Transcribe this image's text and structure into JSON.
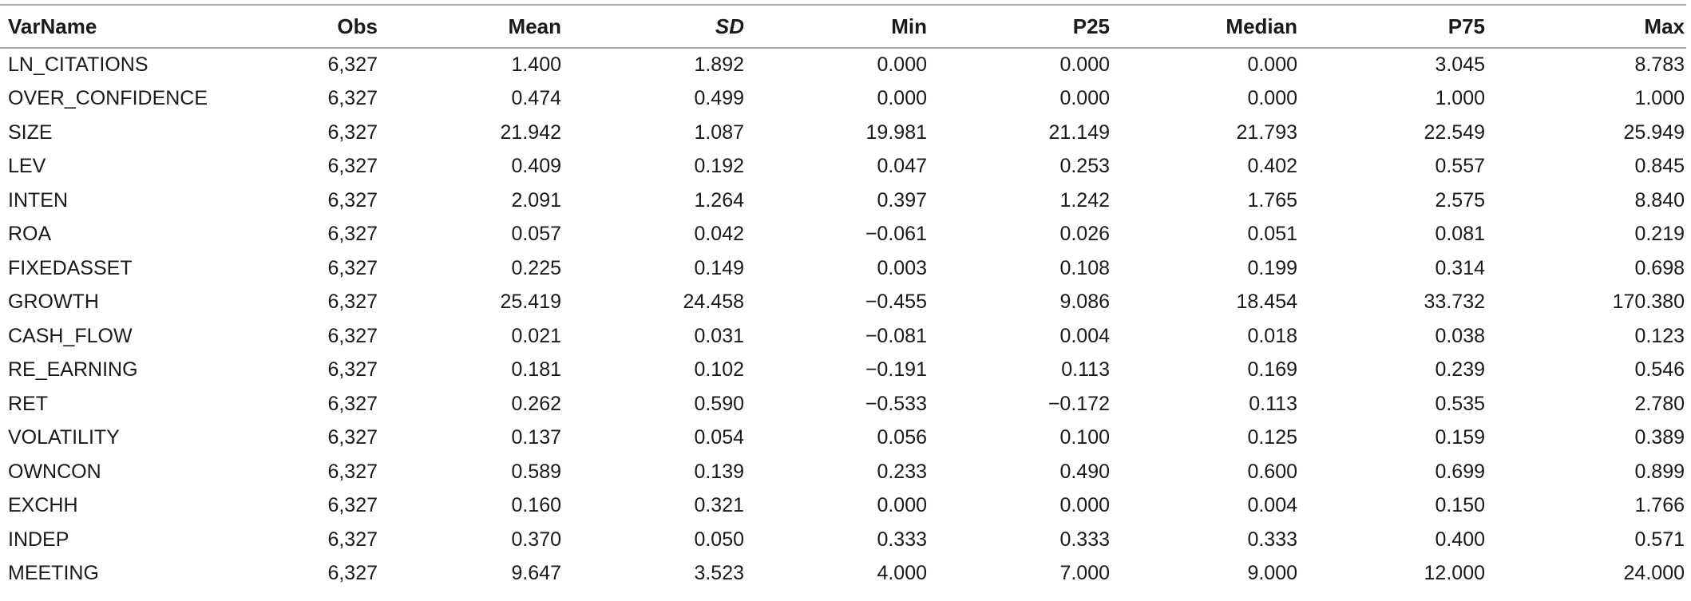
{
  "table": {
    "headers": [
      "VarName",
      "Obs",
      "Mean",
      "SD",
      "Min",
      "P25",
      "Median",
      "P75",
      "Max"
    ],
    "rows": [
      [
        "LN_CITATIONS",
        "6,327",
        "1.400",
        "1.892",
        "0.000",
        "0.000",
        "0.000",
        "3.045",
        "8.783"
      ],
      [
        "OVER_CONFIDENCE",
        "6,327",
        "0.474",
        "0.499",
        "0.000",
        "0.000",
        "0.000",
        "1.000",
        "1.000"
      ],
      [
        "SIZE",
        "6,327",
        "21.942",
        "1.087",
        "19.981",
        "21.149",
        "21.793",
        "22.549",
        "25.949"
      ],
      [
        "LEV",
        "6,327",
        "0.409",
        "0.192",
        "0.047",
        "0.253",
        "0.402",
        "0.557",
        "0.845"
      ],
      [
        "INTEN",
        "6,327",
        "2.091",
        "1.264",
        "0.397",
        "1.242",
        "1.765",
        "2.575",
        "8.840"
      ],
      [
        "ROA",
        "6,327",
        "0.057",
        "0.042",
        "−0.061",
        "0.026",
        "0.051",
        "0.081",
        "0.219"
      ],
      [
        "FIXEDASSET",
        "6,327",
        "0.225",
        "0.149",
        "0.003",
        "0.108",
        "0.199",
        "0.314",
        "0.698"
      ],
      [
        "GROWTH",
        "6,327",
        "25.419",
        "24.458",
        "−0.455",
        "9.086",
        "18.454",
        "33.732",
        "170.380"
      ],
      [
        "CASH_FLOW",
        "6,327",
        "0.021",
        "0.031",
        "−0.081",
        "0.004",
        "0.018",
        "0.038",
        "0.123"
      ],
      [
        "RE_EARNING",
        "6,327",
        "0.181",
        "0.102",
        "−0.191",
        "0.113",
        "0.169",
        "0.239",
        "0.546"
      ],
      [
        "RET",
        "6,327",
        "0.262",
        "0.590",
        "−0.533",
        "−0.172",
        "0.113",
        "0.535",
        "2.780"
      ],
      [
        "VOLATILITY",
        "6,327",
        "0.137",
        "0.054",
        "0.056",
        "0.100",
        "0.125",
        "0.159",
        "0.389"
      ],
      [
        "OWNCON",
        "6,327",
        "0.589",
        "0.139",
        "0.233",
        "0.490",
        "0.600",
        "0.699",
        "0.899"
      ],
      [
        "EXCHH",
        "6,327",
        "0.160",
        "0.321",
        "0.000",
        "0.000",
        "0.004",
        "0.150",
        "1.766"
      ],
      [
        "INDEP",
        "6,327",
        "0.370",
        "0.050",
        "0.333",
        "0.333",
        "0.333",
        "0.400",
        "0.571"
      ],
      [
        "MEETING",
        "6,327",
        "9.647",
        "3.523",
        "4.000",
        "7.000",
        "9.000",
        "12.000",
        "24.000"
      ]
    ]
  },
  "style": {
    "rule_color": "#aaaaaa",
    "text_color": "#1a1a1a"
  }
}
